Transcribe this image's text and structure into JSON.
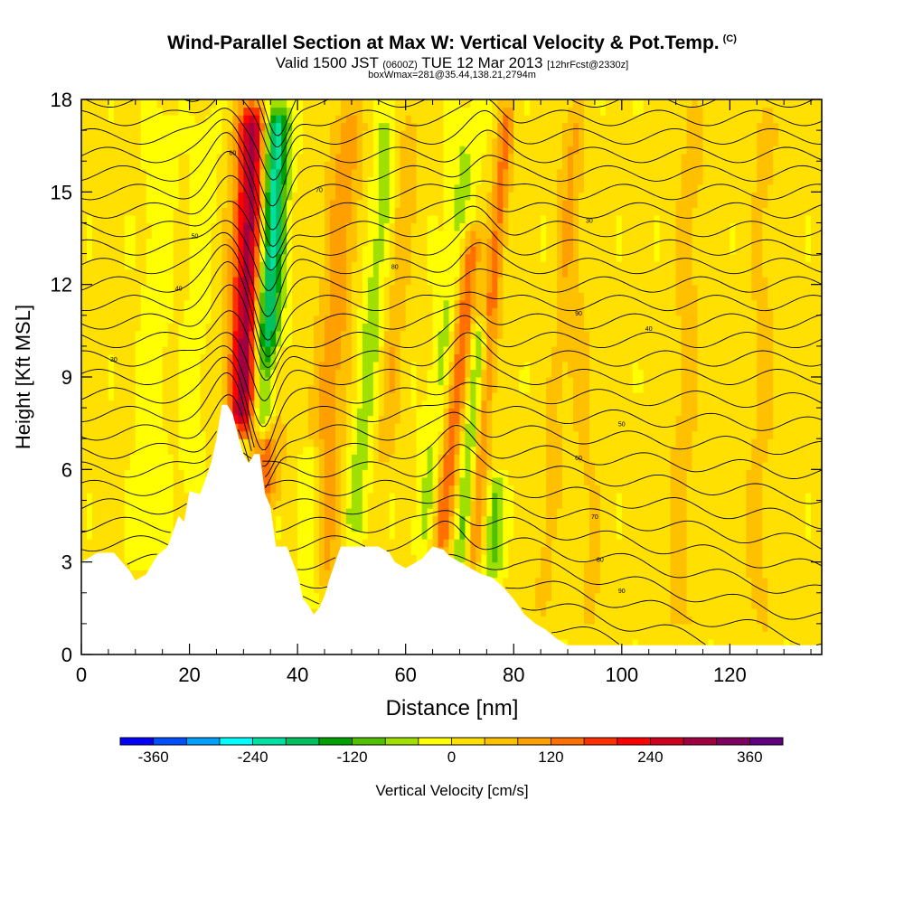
{
  "header": {
    "title": "Wind-Parallel Section at Max W: Vertical Velocity & Pot.Temp.",
    "copyright": "(C)",
    "valid_prefix": "Valid 1500 JST",
    "valid_utc": "(0600Z)",
    "valid_date": "TUE 12 Mar 2013",
    "forecast": "[12hrFcst@2330z]",
    "box_info": "boxWmax=281@35.44,138.21,2794m"
  },
  "chart_data": {
    "type": "heatmap",
    "title": "Wind-Parallel Section at Max W: Vertical Velocity & Pot.Temp.",
    "xlabel": "Distance [nm]",
    "ylabel": "Height [Kft MSL]",
    "xlim": [
      0,
      137
    ],
    "ylim": [
      0,
      18
    ],
    "x_ticks": [
      0,
      20,
      40,
      60,
      80,
      100,
      120
    ],
    "y_ticks": [
      0,
      3,
      6,
      9,
      12,
      15,
      18
    ],
    "colorbar": {
      "label": "Vertical Velocity [cm/s]",
      "range": [
        -400,
        400
      ],
      "ticks": [
        -360,
        -240,
        -120,
        0,
        120,
        240,
        360
      ],
      "colors": [
        "#0000ff",
        "#0050ff",
        "#00a0ff",
        "#00ffff",
        "#00e0a0",
        "#00c060",
        "#00a000",
        "#50c000",
        "#a0e000",
        "#ffff00",
        "#ffe000",
        "#ffc000",
        "#ffa000",
        "#ff7000",
        "#ff3000",
        "#ff0000",
        "#d00020",
        "#a00040",
        "#800060",
        "#600080"
      ]
    },
    "terrain_kft": [
      [
        0,
        3.0
      ],
      [
        3,
        3.3
      ],
      [
        6,
        3.3
      ],
      [
        9,
        2.7
      ],
      [
        10,
        2.4
      ],
      [
        12,
        2.6
      ],
      [
        14,
        3.2
      ],
      [
        16,
        3.5
      ],
      [
        18,
        4.5
      ],
      [
        19,
        4.3
      ],
      [
        20,
        5.3
      ],
      [
        22,
        5.2
      ],
      [
        24,
        6.2
      ],
      [
        25,
        7.0
      ],
      [
        26,
        8.1
      ],
      [
        27,
        8.1
      ],
      [
        28,
        7.8
      ],
      [
        29,
        7.1
      ],
      [
        30,
        6.5
      ],
      [
        31,
        6.2
      ],
      [
        32,
        6.5
      ],
      [
        33,
        6.5
      ],
      [
        34,
        5.2
      ],
      [
        35,
        4.8
      ],
      [
        36,
        3.5
      ],
      [
        38,
        3.5
      ],
      [
        40,
        2.6
      ],
      [
        41,
        1.8
      ],
      [
        42,
        1.6
      ],
      [
        43,
        1.3
      ],
      [
        44,
        1.5
      ],
      [
        45,
        1.9
      ],
      [
        46,
        2.5
      ],
      [
        48,
        3.5
      ],
      [
        55,
        3.5
      ],
      [
        57,
        3.3
      ],
      [
        58,
        3.0
      ],
      [
        60,
        2.8
      ],
      [
        62,
        3.0
      ],
      [
        63,
        3.1
      ],
      [
        65,
        3.5
      ],
      [
        67,
        3.4
      ],
      [
        68,
        3.2
      ],
      [
        70,
        3.0
      ],
      [
        72,
        2.8
      ],
      [
        74,
        2.6
      ],
      [
        76,
        2.5
      ],
      [
        78,
        2.2
      ],
      [
        80,
        1.8
      ],
      [
        82,
        1.3
      ],
      [
        84,
        1.0
      ],
      [
        86,
        0.8
      ],
      [
        88,
        0.5
      ],
      [
        90,
        0.3
      ],
      [
        95,
        0.3
      ],
      [
        137,
        0.3
      ]
    ],
    "vertical_velocity_bands": [
      {
        "x": 30,
        "half_width": 3.0,
        "w_cms": 320,
        "lean": 0.2,
        "y_min": 7.0,
        "y_max": 18
      },
      {
        "x": 33,
        "half_width": 2.6,
        "w_cms": -280,
        "lean": 0.28,
        "y_min": 7.0,
        "y_max": 18
      },
      {
        "x": 34,
        "half_width": 3.0,
        "w_cms": 110,
        "lean": 0.08,
        "y_min": 4.5,
        "y_max": 10
      },
      {
        "x": 44,
        "half_width": 3.2,
        "w_cms": 90,
        "lean": 0.35,
        "y_min": 2.0,
        "y_max": 18
      },
      {
        "x": 42,
        "half_width": 2.2,
        "w_cms": -80,
        "lean": 0.1,
        "y_min": 1.5,
        "y_max": 7
      },
      {
        "x": 50,
        "half_width": 2.4,
        "w_cms": -70,
        "lean": 0.5,
        "y_min": 3.5,
        "y_max": 18
      },
      {
        "x": 56,
        "half_width": 2.0,
        "w_cms": 60,
        "lean": 0.4,
        "y_min": 6.0,
        "y_max": 18
      },
      {
        "x": 63,
        "half_width": 2.5,
        "w_cms": -60,
        "lean": 0.6,
        "y_min": 3.0,
        "y_max": 18
      },
      {
        "x": 66,
        "half_width": 1.8,
        "w_cms": 150,
        "lean": 0.6,
        "y_min": 3.0,
        "y_max": 14
      },
      {
        "x": 70,
        "half_width": 1.6,
        "w_cms": -110,
        "lean": 0.5,
        "y_min": 2.5,
        "y_max": 11
      },
      {
        "x": 72,
        "half_width": 1.6,
        "w_cms": 120,
        "lean": 0.45,
        "y_min": 2.5,
        "y_max": 18
      },
      {
        "x": 76,
        "half_width": 1.8,
        "w_cms": -100,
        "lean": 0.2,
        "y_min": 2.2,
        "y_max": 6
      },
      {
        "x": 85,
        "half_width": 2.0,
        "w_cms": 40,
        "lean": 0.4,
        "y_min": 1.0,
        "y_max": 18
      },
      {
        "x": 95,
        "half_width": 2.5,
        "w_cms": 35,
        "lean": -0.3,
        "y_min": 0.3,
        "y_max": 18
      },
      {
        "x": 110,
        "half_width": 3.0,
        "w_cms": 40,
        "lean": 0.2,
        "y_min": 0.3,
        "y_max": 18
      },
      {
        "x": 125,
        "half_width": 3.0,
        "w_cms": 35,
        "lean": 0.1,
        "y_min": 0.3,
        "y_max": 18
      },
      {
        "x": 12,
        "half_width": 3.0,
        "w_cms": -35,
        "lean": 0.2,
        "y_min": 2.5,
        "y_max": 18
      },
      {
        "x": 20,
        "half_width": 2.5,
        "w_cms": -30,
        "lean": 0.25,
        "y_min": 4.5,
        "y_max": 18
      }
    ],
    "isentrope_count": 30,
    "isentrope_labels": [
      "30",
      "40",
      "50",
      "60",
      "70",
      "80",
      "90"
    ]
  },
  "colors": {
    "background": "#ffffff",
    "terrain": "#ffffff",
    "contour": "#000000"
  }
}
